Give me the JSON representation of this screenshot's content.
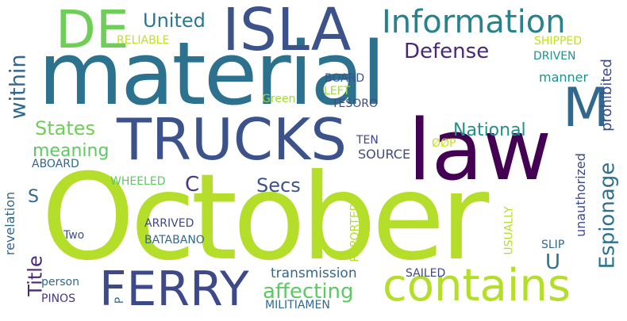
{
  "words": [
    {
      "id": "october",
      "text": "October",
      "color": "#b5de2b",
      "vertical": false
    },
    {
      "id": "material",
      "text": "material",
      "color": "#2c728e",
      "vertical": false
    },
    {
      "id": "law",
      "text": "law",
      "color": "#440154",
      "vertical": false
    },
    {
      "id": "trucks",
      "text": "TRUCKS",
      "color": "#3b528b",
      "vertical": false
    },
    {
      "id": "ferry",
      "text": "FERRY",
      "color": "#3e4989",
      "vertical": false
    },
    {
      "id": "isla",
      "text": "ISLA",
      "color": "#3b528b",
      "vertical": false
    },
    {
      "id": "de",
      "text": "DE",
      "color": "#6ece58",
      "vertical": false
    },
    {
      "id": "m",
      "text": "M",
      "color": "#31688e",
      "vertical": false
    },
    {
      "id": "contains",
      "text": "contains",
      "color": "#b5de2b",
      "vertical": false
    },
    {
      "id": "information",
      "text": "Information",
      "color": "#26828e",
      "vertical": false
    },
    {
      "id": "united",
      "text": "United",
      "color": "#2a788e",
      "vertical": false
    },
    {
      "id": "defense",
      "text": "Defense",
      "color": "#482878",
      "vertical": false
    },
    {
      "id": "within",
      "text": "within",
      "color": "#31688e",
      "vertical": true
    },
    {
      "id": "states",
      "text": "States",
      "color": "#6ece58",
      "vertical": false
    },
    {
      "id": "meaning",
      "text": "meaning",
      "color": "#5ec962",
      "vertical": false
    },
    {
      "id": "national",
      "text": "National",
      "color": "#21918c",
      "vertical": false
    },
    {
      "id": "espionage",
      "text": "Espionage",
      "color": "#2c728e",
      "vertical": true
    },
    {
      "id": "prohibited",
      "text": "prohibited",
      "color": "#3e4989",
      "vertical": true
    },
    {
      "id": "unauthorized",
      "text": "unauthorized",
      "color": "#3e4989",
      "vertical": true
    },
    {
      "id": "secs",
      "text": "Secs",
      "color": "#3b528b",
      "vertical": false
    },
    {
      "id": "c",
      "text": "C",
      "color": "#443983",
      "vertical": false
    },
    {
      "id": "s",
      "text": "S",
      "color": "#31688e",
      "vertical": false
    },
    {
      "id": "u",
      "text": "U",
      "color": "#2c728e",
      "vertical": false
    },
    {
      "id": "title",
      "text": "Title",
      "color": "#482878",
      "vertical": true
    },
    {
      "id": "revelation",
      "text": "revelation",
      "color": "#31688e",
      "vertical": true
    },
    {
      "id": "affecting",
      "text": "affecting",
      "color": "#5ec962",
      "vertical": false
    },
    {
      "id": "transmission",
      "text": "transmission",
      "color": "#31688e",
      "vertical": false
    },
    {
      "id": "reliable",
      "text": "RELIABLE",
      "color": "#c2df23",
      "vertical": false
    },
    {
      "id": "shipped",
      "text": "SHIPPED",
      "color": "#c2df23",
      "vertical": false
    },
    {
      "id": "driven",
      "text": "DRIVEN",
      "color": "#21918c",
      "vertical": false
    },
    {
      "id": "manner",
      "text": "manner",
      "color": "#21918c",
      "vertical": false
    },
    {
      "id": "board",
      "text": "BOARD",
      "color": "#3b528b",
      "vertical": false
    },
    {
      "id": "left",
      "text": "LEFT",
      "color": "#a0da39",
      "vertical": false
    },
    {
      "id": "green",
      "text": "Green",
      "color": "#a0da39",
      "vertical": false
    },
    {
      "id": "tesoro",
      "text": "TESORO",
      "color": "#3e4989",
      "vertical": false
    },
    {
      "id": "ten",
      "text": "TEN",
      "color": "#3e4989",
      "vertical": false
    },
    {
      "id": "oop",
      "text": "ØØP",
      "color": "#c2df23",
      "vertical": false
    },
    {
      "id": "source",
      "text": "SOURCE",
      "color": "#3e4989",
      "vertical": false
    },
    {
      "id": "aboard",
      "text": "ABOARD",
      "color": "#31688e",
      "vertical": false
    },
    {
      "id": "wheeled",
      "text": "WHEELED",
      "color": "#5ec962",
      "vertical": false
    },
    {
      "id": "reported",
      "text": "REPORTED",
      "color": "#b5de2b",
      "vertical": true
    },
    {
      "id": "usually",
      "text": "USUALLY",
      "color": "#b5de2b",
      "vertical": true
    },
    {
      "id": "arrived",
      "text": "ARRIVED",
      "color": "#3e4989",
      "vertical": false
    },
    {
      "id": "batabano",
      "text": "BATABANO",
      "color": "#31688e",
      "vertical": false
    },
    {
      "id": "two",
      "text": "Two",
      "color": "#3b528b",
      "vertical": false
    },
    {
      "id": "slip",
      "text": "SLIP",
      "color": "#31688e",
      "vertical": false
    },
    {
      "id": "sailed",
      "text": "SAILED",
      "color": "#3e4989",
      "vertical": false
    },
    {
      "id": "person",
      "text": "person",
      "color": "#31688e",
      "vertical": false
    },
    {
      "id": "pinos",
      "text": "PINOS",
      "color": "#443983",
      "vertical": false
    },
    {
      "id": "p",
      "text": "P",
      "color": "#2c728e",
      "vertical": true
    },
    {
      "id": "militiamen",
      "text": "MILITIAMEN",
      "color": "#31688e",
      "vertical": false
    }
  ]
}
